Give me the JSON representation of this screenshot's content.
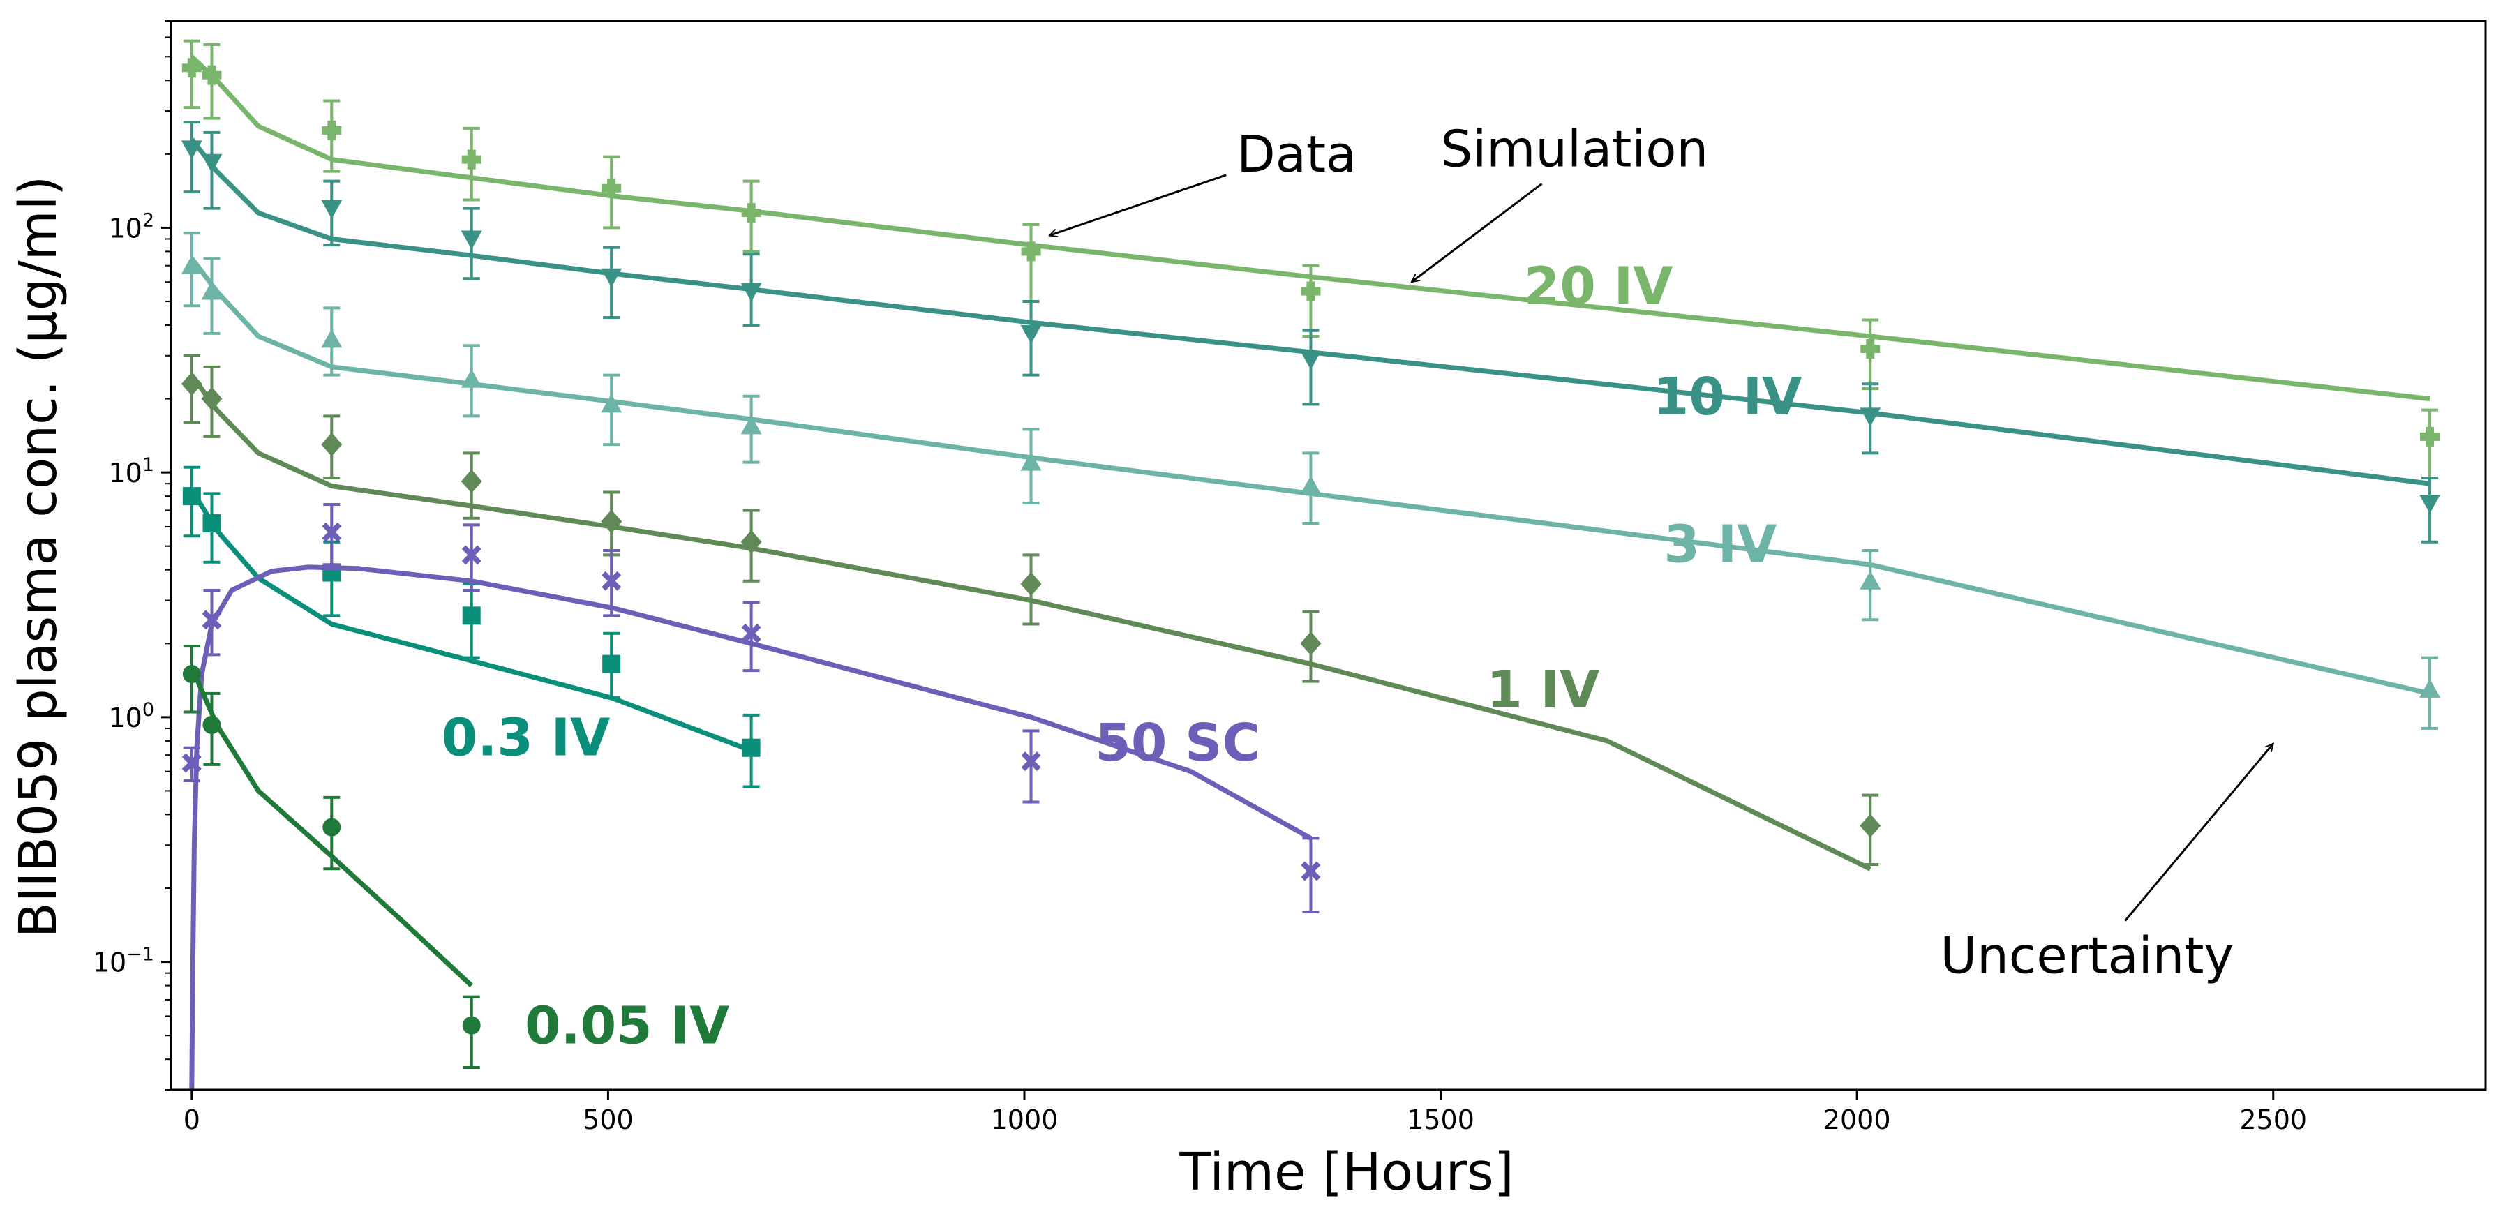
{
  "chart_data": {
    "type": "scatter",
    "xlabel": "Time [Hours]",
    "ylabel": "BIIB059 plasma conc. (µg/ml)",
    "xlim": [
      -25,
      2755
    ],
    "ylim": [
      0.03,
      700
    ],
    "yscale": "log",
    "grid": false,
    "x_ticks": [
      0,
      500,
      1000,
      1500,
      2000,
      2500
    ],
    "y_ticks": [
      {
        "value": 0.1,
        "base": "10",
        "exp": "−1"
      },
      {
        "value": 1,
        "base": "10",
        "exp": "0"
      },
      {
        "value": 10,
        "base": "10",
        "exp": "1"
      },
      {
        "value": 100,
        "base": "10",
        "exp": "2"
      }
    ],
    "series": [
      {
        "name": "20 IV",
        "color": "#7ab56c",
        "marker": "plus",
        "data": [
          {
            "x": 0,
            "y": 450,
            "lo": 310,
            "hi": 580
          },
          {
            "x": 24,
            "y": 420,
            "lo": 280,
            "hi": 560
          },
          {
            "x": 168,
            "y": 250,
            "lo": 170,
            "hi": 330
          },
          {
            "x": 336,
            "y": 190,
            "lo": 130,
            "hi": 255
          },
          {
            "x": 504,
            "y": 145,
            "lo": 100,
            "hi": 195
          },
          {
            "x": 672,
            "y": 115,
            "lo": 80,
            "hi": 155
          },
          {
            "x": 1008,
            "y": 80,
            "lo": 50,
            "hi": 103
          },
          {
            "x": 1344,
            "y": 55,
            "lo": 36,
            "hi": 70
          },
          {
            "x": 2016,
            "y": 32,
            "lo": 22,
            "hi": 42
          },
          {
            "x": 2688,
            "y": 14,
            "lo": 9.5,
            "hi": 18
          }
        ],
        "sim": [
          [
            0,
            500
          ],
          [
            30,
            400
          ],
          [
            80,
            260
          ],
          [
            168,
            190
          ],
          [
            336,
            160
          ],
          [
            504,
            135
          ],
          [
            672,
            117
          ],
          [
            1008,
            85
          ],
          [
            1344,
            63
          ],
          [
            2016,
            36
          ],
          [
            2688,
            20
          ]
        ]
      },
      {
        "name": "10 IV",
        "color": "#3a9286",
        "marker": "triangle-down",
        "data": [
          {
            "x": 0,
            "y": 210,
            "lo": 140,
            "hi": 270
          },
          {
            "x": 24,
            "y": 185,
            "lo": 120,
            "hi": 245
          },
          {
            "x": 168,
            "y": 120,
            "lo": 85,
            "hi": 155
          },
          {
            "x": 336,
            "y": 90,
            "lo": 62,
            "hi": 120
          },
          {
            "x": 504,
            "y": 63,
            "lo": 43,
            "hi": 83
          },
          {
            "x": 672,
            "y": 55,
            "lo": 40,
            "hi": 78
          },
          {
            "x": 1008,
            "y": 37,
            "lo": 25,
            "hi": 50
          },
          {
            "x": 1344,
            "y": 29,
            "lo": 19,
            "hi": 38
          },
          {
            "x": 2016,
            "y": 17,
            "lo": 12,
            "hi": 23
          },
          {
            "x": 2688,
            "y": 7.5,
            "lo": 5.2,
            "hi": 9.5
          }
        ],
        "sim": [
          [
            0,
            230
          ],
          [
            30,
            170
          ],
          [
            80,
            115
          ],
          [
            168,
            90
          ],
          [
            336,
            77
          ],
          [
            504,
            65
          ],
          [
            672,
            56
          ],
          [
            1008,
            41
          ],
          [
            1344,
            31
          ],
          [
            2016,
            17.5
          ],
          [
            2688,
            9
          ]
        ]
      },
      {
        "name": "3 IV",
        "color": "#6db3a6",
        "marker": "triangle-up",
        "data": [
          {
            "x": 0,
            "y": 70,
            "lo": 48,
            "hi": 95
          },
          {
            "x": 24,
            "y": 55,
            "lo": 37,
            "hi": 75
          },
          {
            "x": 168,
            "y": 35,
            "lo": 25,
            "hi": 47
          },
          {
            "x": 336,
            "y": 24,
            "lo": 17,
            "hi": 33
          },
          {
            "x": 504,
            "y": 19,
            "lo": 13,
            "hi": 25
          },
          {
            "x": 672,
            "y": 15.5,
            "lo": 11,
            "hi": 20.5
          },
          {
            "x": 1008,
            "y": 11,
            "lo": 7.5,
            "hi": 15
          },
          {
            "x": 1344,
            "y": 8.8,
            "lo": 6.2,
            "hi": 12
          },
          {
            "x": 2016,
            "y": 3.6,
            "lo": 2.5,
            "hi": 4.8
          },
          {
            "x": 2688,
            "y": 1.3,
            "lo": 0.9,
            "hi": 1.75
          }
        ],
        "sim": [
          [
            0,
            75
          ],
          [
            30,
            55
          ],
          [
            80,
            36
          ],
          [
            168,
            27
          ],
          [
            336,
            23
          ],
          [
            504,
            19.5
          ],
          [
            672,
            16.5
          ],
          [
            1008,
            11.5
          ],
          [
            1344,
            8.2
          ],
          [
            2016,
            4.2
          ],
          [
            2688,
            1.25
          ]
        ]
      },
      {
        "name": "1 IV",
        "color": "#5f8a58",
        "marker": "diamond",
        "data": [
          {
            "x": 0,
            "y": 23,
            "lo": 16,
            "hi": 30
          },
          {
            "x": 24,
            "y": 20,
            "lo": 14,
            "hi": 27
          },
          {
            "x": 168,
            "y": 13,
            "lo": 9.5,
            "hi": 17
          },
          {
            "x": 336,
            "y": 9.2,
            "lo": 6.5,
            "hi": 12
          },
          {
            "x": 504,
            "y": 6.3,
            "lo": 4.6,
            "hi": 8.3
          },
          {
            "x": 672,
            "y": 5.2,
            "lo": 3.6,
            "hi": 7
          },
          {
            "x": 1008,
            "y": 3.5,
            "lo": 2.4,
            "hi": 4.6
          },
          {
            "x": 1344,
            "y": 2,
            "lo": 1.4,
            "hi": 2.7
          },
          {
            "x": 2016,
            "y": 0.36,
            "lo": 0.25,
            "hi": 0.48
          }
        ],
        "sim": [
          [
            0,
            25
          ],
          [
            30,
            18
          ],
          [
            80,
            12
          ],
          [
            168,
            8.8
          ],
          [
            336,
            7.3
          ],
          [
            504,
            6
          ],
          [
            672,
            4.9
          ],
          [
            1008,
            3
          ],
          [
            1344,
            1.65
          ],
          [
            1700,
            0.8
          ],
          [
            2016,
            0.24
          ]
        ]
      },
      {
        "name": "0.3 IV",
        "color": "#0a8f7a",
        "marker": "square",
        "data": [
          {
            "x": 0,
            "y": 8,
            "lo": 5.5,
            "hi": 10.5
          },
          {
            "x": 24,
            "y": 6.2,
            "lo": 4.3,
            "hi": 8.2
          },
          {
            "x": 168,
            "y": 3.9,
            "lo": 2.6,
            "hi": 5.2
          },
          {
            "x": 336,
            "y": 2.6,
            "lo": 1.75,
            "hi": 3.5
          },
          {
            "x": 504,
            "y": 1.65,
            "lo": 1.2,
            "hi": 2.2
          },
          {
            "x": 672,
            "y": 0.75,
            "lo": 0.52,
            "hi": 1.02
          }
        ],
        "sim": [
          [
            0,
            8.5
          ],
          [
            30,
            5.8
          ],
          [
            80,
            3.7
          ],
          [
            168,
            2.4
          ],
          [
            336,
            1.7
          ],
          [
            504,
            1.2
          ],
          [
            672,
            0.73
          ]
        ]
      },
      {
        "name": "50 SC",
        "color": "#6b5fb8",
        "marker": "cross",
        "data": [
          {
            "x": 0,
            "y": 0.65,
            "lo": 0.55,
            "hi": 0.75
          },
          {
            "x": 24,
            "y": 2.5,
            "lo": 1.8,
            "hi": 3.3
          },
          {
            "x": 168,
            "y": 5.7,
            "lo": 4.2,
            "hi": 7.4
          },
          {
            "x": 336,
            "y": 4.6,
            "lo": 3.3,
            "hi": 6.1
          },
          {
            "x": 504,
            "y": 3.6,
            "lo": 2.6,
            "hi": 4.8
          },
          {
            "x": 672,
            "y": 2.2,
            "lo": 1.55,
            "hi": 2.95
          },
          {
            "x": 1008,
            "y": 0.66,
            "lo": 0.45,
            "hi": 0.88
          },
          {
            "x": 1344,
            "y": 0.235,
            "lo": 0.16,
            "hi": 0.32
          }
        ],
        "sim": [
          [
            0,
            0.03
          ],
          [
            1,
            0.08
          ],
          [
            3,
            0.3
          ],
          [
            6,
            0.75
          ],
          [
            12,
            1.5
          ],
          [
            24,
            2.4
          ],
          [
            48,
            3.3
          ],
          [
            96,
            3.95
          ],
          [
            140,
            4.1
          ],
          [
            200,
            4.05
          ],
          [
            336,
            3.6
          ],
          [
            504,
            2.8
          ],
          [
            672,
            2
          ],
          [
            1008,
            1
          ],
          [
            1200,
            0.6
          ],
          [
            1344,
            0.32
          ]
        ]
      },
      {
        "name": "0.05 IV",
        "color": "#1f7a3a",
        "marker": "circle",
        "data": [
          {
            "x": 0,
            "y": 1.5,
            "lo": 1.05,
            "hi": 1.95
          },
          {
            "x": 24,
            "y": 0.93,
            "lo": 0.64,
            "hi": 1.25
          },
          {
            "x": 168,
            "y": 0.355,
            "lo": 0.24,
            "hi": 0.47
          },
          {
            "x": 336,
            "y": 0.055,
            "lo": 0.037,
            "hi": 0.072
          }
        ],
        "sim": [
          [
            0,
            1.6
          ],
          [
            30,
            0.93
          ],
          [
            80,
            0.5
          ],
          [
            168,
            0.27
          ],
          [
            250,
            0.15
          ],
          [
            336,
            0.08
          ]
        ]
      }
    ],
    "series_labels": [
      {
        "text": "20 IV",
        "x": 1600,
        "y": 58
      },
      {
        "text": "10 IV",
        "x": 1755,
        "y": 20.5
      },
      {
        "text": "3 IV",
        "x": 1768,
        "y": 5.1
      },
      {
        "text": "1 IV",
        "x": 1555,
        "y": 1.3
      },
      {
        "text": "0.3 IV",
        "x": 300,
        "y": 0.83
      },
      {
        "text": "50 SC",
        "x": 1085,
        "y": 0.79
      },
      {
        "text": "0.05 IV",
        "x": 400,
        "y": 0.055
      }
    ],
    "annotations": [
      {
        "text": "Data",
        "x": 1255,
        "y": 200,
        "arrow_to": [
          1030,
          93
        ]
      },
      {
        "text": "Simulation",
        "x": 1500,
        "y": 210,
        "arrow_to": [
          1465,
          60
        ]
      },
      {
        "text": "Uncertainty",
        "x": 2100,
        "y": 0.106,
        "arrow_to": [
          2500,
          0.78
        ]
      }
    ]
  }
}
